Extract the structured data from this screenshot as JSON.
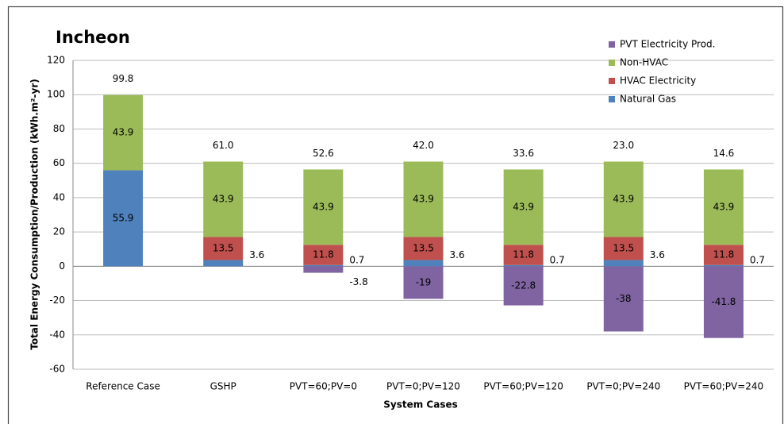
{
  "chart_data": {
    "type": "stacked_bar",
    "title": "Incheon",
    "x_label": "System Cases",
    "y_label": "Total Energy Consumption/Production  (kWh.m²-yr)",
    "categories": [
      "Reference Case",
      "GSHP",
      "PVT=60;PV=0",
      "PVT=0;PV=120",
      "PVT=60;PV=120",
      "PVT=0;PV=240",
      "PVT=60;PV=240"
    ],
    "series": [
      {
        "name": "Natural Gas",
        "color": "#4f81bd",
        "values": [
          55.9,
          3.6,
          0.7,
          3.6,
          0.7,
          3.6,
          0.7
        ]
      },
      {
        "name": "HVAC Electricity",
        "color": "#c0504d",
        "values": [
          null,
          13.5,
          11.8,
          13.5,
          11.8,
          13.5,
          11.8
        ]
      },
      {
        "name": "Non-HVAC",
        "color": "#9bbb59",
        "values": [
          43.9,
          43.9,
          43.9,
          43.9,
          43.9,
          43.9,
          43.9
        ]
      },
      {
        "name": "PVT Electricity Prod.",
        "color": "#8064a2",
        "values": [
          null,
          null,
          -3.8,
          -19,
          -22.8,
          -38,
          -41.8
        ]
      }
    ],
    "totals": {
      "values": [
        99.8,
        61.0,
        52.6,
        42.0,
        33.6,
        23.0,
        14.6
      ],
      "value_labels": [
        "99.8",
        "61.0",
        "52.6",
        "42.0",
        "33.6",
        "23.0",
        "14.6"
      ]
    },
    "ylim": [
      -60,
      120
    ],
    "yticks": [
      -60,
      -40,
      -20,
      0,
      20,
      40,
      60,
      80,
      100,
      120
    ],
    "grid": true,
    "legend": "top-right"
  }
}
